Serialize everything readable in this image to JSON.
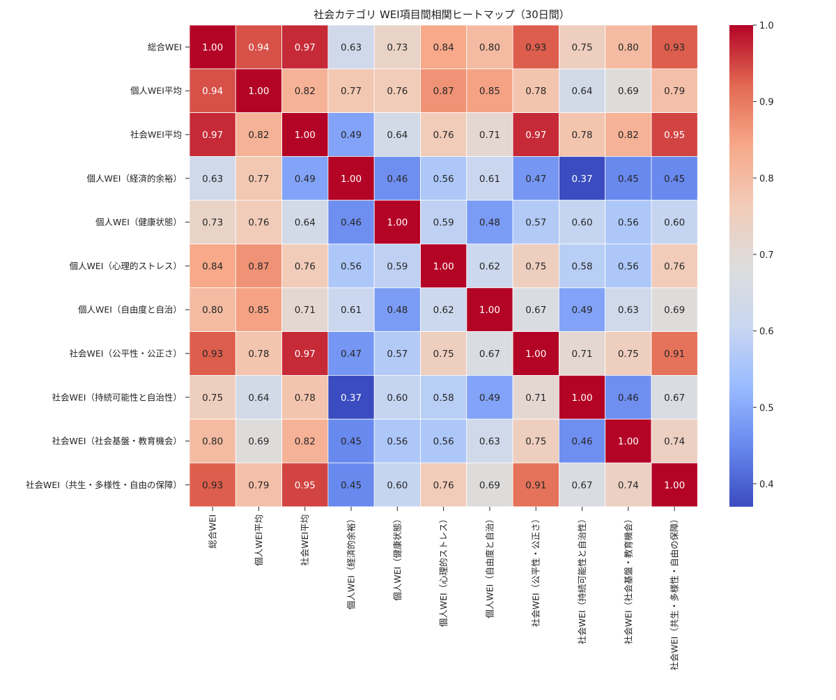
{
  "chart_data": {
    "type": "heatmap",
    "title": "社会カテゴリ WEI項目間相関ヒートマップ（30日間）",
    "row_labels": [
      "総合WEI",
      "個人WEI平均",
      "社会WEI平均",
      "個人WEI（経済的余裕）",
      "個人WEI（健康状態）",
      "個人WEI（心理的ストレス）",
      "個人WEI（自由度と自治）",
      "社会WEI（公平性・公正さ）",
      "社会WEI（持続可能性と自治性）",
      "社会WEI（社会基盤・教育機会）",
      "社会WEI（共生・多様性・自由の保障）"
    ],
    "col_labels": [
      "総合WEI",
      "個人WEI平均",
      "社会WEI平均",
      "個人WEI（経済的余裕）",
      "個人WEI（健康状態）",
      "個人WEI（心理的ストレス）",
      "個人WEI（自由度と自治）",
      "社会WEI（公平性・公正さ）",
      "社会WEI（持続可能性と自治性）",
      "社会WEI（社会基盤・教育機会）",
      "社会WEI（共生・多様性・自由の保障）"
    ],
    "values": [
      [
        1.0,
        0.94,
        0.97,
        0.63,
        0.73,
        0.84,
        0.8,
        0.93,
        0.75,
        0.8,
        0.93
      ],
      [
        0.94,
        1.0,
        0.82,
        0.77,
        0.76,
        0.87,
        0.85,
        0.78,
        0.64,
        0.69,
        0.79
      ],
      [
        0.97,
        0.82,
        1.0,
        0.49,
        0.64,
        0.76,
        0.71,
        0.97,
        0.78,
        0.82,
        0.95
      ],
      [
        0.63,
        0.77,
        0.49,
        1.0,
        0.46,
        0.56,
        0.61,
        0.47,
        0.37,
        0.45,
        0.45
      ],
      [
        0.73,
        0.76,
        0.64,
        0.46,
        1.0,
        0.59,
        0.48,
        0.57,
        0.6,
        0.56,
        0.6
      ],
      [
        0.84,
        0.87,
        0.76,
        0.56,
        0.59,
        1.0,
        0.62,
        0.75,
        0.58,
        0.56,
        0.76
      ],
      [
        0.8,
        0.85,
        0.71,
        0.61,
        0.48,
        0.62,
        1.0,
        0.67,
        0.49,
        0.63,
        0.69
      ],
      [
        0.93,
        0.78,
        0.97,
        0.47,
        0.57,
        0.75,
        0.67,
        1.0,
        0.71,
        0.75,
        0.91
      ],
      [
        0.75,
        0.64,
        0.78,
        0.37,
        0.6,
        0.58,
        0.49,
        0.71,
        1.0,
        0.46,
        0.67
      ],
      [
        0.8,
        0.69,
        0.82,
        0.45,
        0.56,
        0.56,
        0.63,
        0.75,
        0.46,
        1.0,
        0.74
      ],
      [
        0.93,
        0.79,
        0.95,
        0.45,
        0.6,
        0.76,
        0.69,
        0.91,
        0.67,
        0.74,
        1.0
      ]
    ],
    "value_format": "2 decimals",
    "colormap": "coolwarm",
    "vmin": 0.37,
    "vmax": 1.0,
    "colorbar_ticks": [
      0.4,
      0.5,
      0.6,
      0.7,
      0.8,
      0.9,
      1.0
    ],
    "colorbar_tick_labels": [
      "0.4",
      "0.5",
      "0.6",
      "0.7",
      "0.8",
      "0.9",
      "1.0"
    ],
    "colorbar_position": "right",
    "cell_border_color": "#ffffff",
    "colormap_stops": [
      "#3b4cc0",
      "#6788ee",
      "#9abbff",
      "#c9d7f0",
      "#dddddd",
      "#f2cbb7",
      "#f7a889",
      "#e26952",
      "#b40426"
    ]
  }
}
